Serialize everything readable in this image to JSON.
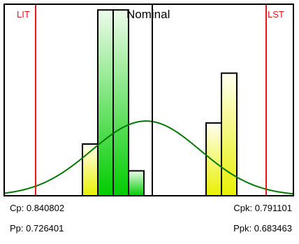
{
  "chart_data": {
    "type": "bar",
    "title": "",
    "bars": [
      {
        "height_fraction": 0.27,
        "color": "yellow"
      },
      {
        "height_fraction": 0.97,
        "color": "green"
      },
      {
        "height_fraction": 0.97,
        "color": "green"
      },
      {
        "height_fraction": 0.13,
        "color": "green"
      },
      {
        "height_fraction": 0.38,
        "color": "yellow"
      },
      {
        "height_fraction": 0.64,
        "color": "yellow"
      }
    ],
    "gaps_after_bar": [
      4
    ],
    "markers": {
      "lower_limit": "LIT",
      "upper_limit": "LST",
      "nominal": "Nominal"
    },
    "normal_curve": {
      "shown": true,
      "peak_fraction": 0.39
    },
    "grid": false,
    "legend": "none"
  },
  "stats": {
    "cp": {
      "label": "Cp:",
      "value": "0.840802"
    },
    "cpk": {
      "label": "Cpk:",
      "value": "0.791101"
    },
    "pp": {
      "label": "Pp:",
      "value": "0.726401"
    },
    "ppk": {
      "label": "Ppk:",
      "value": "0.683463"
    }
  },
  "colors": {
    "limit_line": "#e8151b",
    "nominal_line": "#000000",
    "curve": "#007a00",
    "green_top": "#edfbea",
    "green_bottom": "#00cc00",
    "yellow_top": "#fffff0",
    "yellow_bottom": "#e9f000",
    "border": "#000000"
  }
}
